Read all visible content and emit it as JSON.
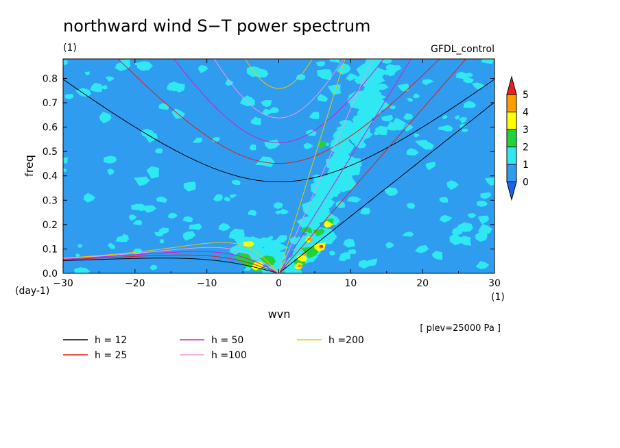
{
  "chart_data": {
    "type": "heatmap",
    "title": "northward wind S−T power spectrum",
    "units_left": "(1)",
    "run_label": "GFDL_control",
    "xlabel": "wvn",
    "ylabel": "freq",
    "x_unit": "(1)",
    "y_unit": "(day-1)",
    "xlim": [
      -30,
      30
    ],
    "ylim": [
      0,
      0.88
    ],
    "x_ticks": [
      -30,
      -20,
      -10,
      0,
      10,
      20,
      30
    ],
    "x_tick_labels": [
      "−30",
      "−20",
      "−10",
      "0",
      "10",
      "20",
      "30"
    ],
    "y_ticks": [
      0.0,
      0.1,
      0.2,
      0.3,
      0.4,
      0.5,
      0.6,
      0.7,
      0.8
    ],
    "y_tick_labels": [
      "0.0",
      "0.1",
      "0.2",
      "0.3",
      "0.4",
      "0.5",
      "0.6",
      "0.7",
      "0.8"
    ],
    "plev_note": "[ plev=25000 Pa ]",
    "colorbar": {
      "labels": [
        "0",
        "1",
        "2",
        "3",
        "4",
        "5"
      ],
      "colors": [
        "#2f9cf0",
        "#2fe8f2",
        "#22d23a",
        "#ffff00",
        "#ff9c00",
        "#e82020"
      ],
      "under_color": "#1a64e6",
      "over_color": "#e82020"
    },
    "contour_levels": {
      "background": "#2f9cf0",
      "level1": "#2fe8f2",
      "level2": "#22d23a",
      "level3": "#ffff00",
      "level4": "#ff9c00",
      "level5": "#e82020"
    },
    "dispersion_curves": [
      {
        "label": "h = 12",
        "h": 12,
        "color": "#000000"
      },
      {
        "label": "h = 25",
        "h": 25,
        "color": "#dd1c1c"
      },
      {
        "label": "h = 50",
        "h": 50,
        "color": "#d01ad0"
      },
      {
        "label": "h =100",
        "h": 100,
        "color": "#ee99ee"
      },
      {
        "label": "h =200",
        "h": 200,
        "color": "#e6cc00"
      }
    ],
    "grid": false,
    "legend_position": "bottom-left"
  }
}
